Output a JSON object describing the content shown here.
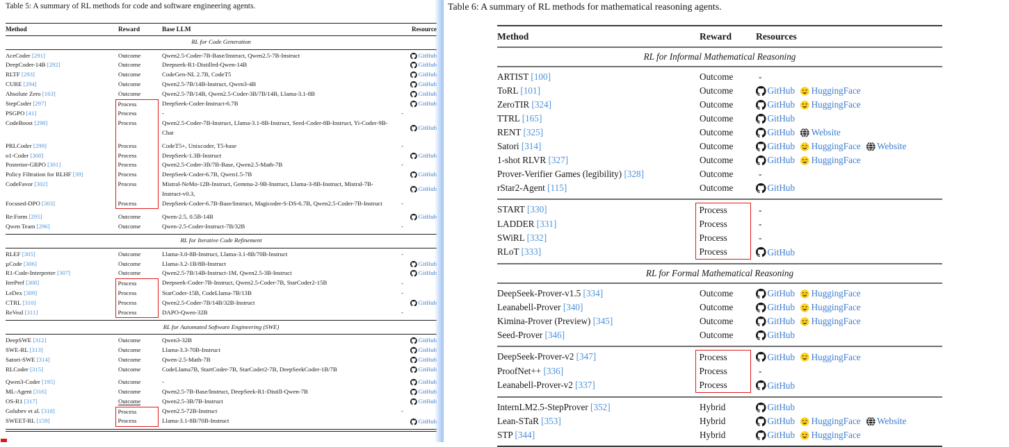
{
  "resource_labels": {
    "github": "GitHub",
    "hf": "HuggingFace",
    "web": "Website",
    "none": "-"
  },
  "colors": {
    "accent_red": "#dc1a1a",
    "link_blue": "#3c7cd0",
    "citation_blue": "#4b92d8",
    "separator_blue": "#9fc3ef"
  },
  "table5": {
    "caption": "Table 5: A summary of RL methods for code and software engineering agents.",
    "columns": [
      "Method",
      "Reward",
      "Base LLM",
      "Resource"
    ],
    "sections": [
      {
        "title": "RL for Code Generation",
        "blocks": [
          [
            {
              "m": "AceCoder",
              "c": "291",
              "r": "Outcome",
              "b": "Qwen2.5-Coder-7B-Base/Instruct, Qwen2.5-7B-Instruct",
              "res": [
                "github"
              ]
            },
            {
              "m": "DeepCoder-14B",
              "c": "292",
              "r": "Outcome",
              "b": "Deepseek-R1-Distilled-Qwen-14B",
              "res": [
                "github"
              ]
            },
            {
              "m": "RLTF",
              "c": "293",
              "r": "Outcome",
              "b": "CodeGen-NL 2.7B, CodeT5",
              "res": [
                "github"
              ]
            },
            {
              "m": "CURE",
              "c": "294",
              "r": "Outcome",
              "b": "Qwen2.5-7B/14B-Instruct, Qwen3-4B",
              "res": [
                "github"
              ]
            },
            {
              "m": "Absolute Zero",
              "c": "163",
              "r": "Outcome",
              "b": "Qwen2.5-7B/14B, Qwen2.5-Coder-3B/7B/14B, Llama-3.1-8B",
              "res": [
                "github"
              ]
            },
            {
              "m": "StepCoder",
              "c": "297",
              "r": "Process",
              "b": "DeepSeek-Coder-Instruct-6.7B",
              "res": [
                "github"
              ],
              "box": "s"
            },
            {
              "m": "PSGPO",
              "c": "41",
              "r": "Process",
              "b": "-",
              "res": [
                "-"
              ],
              "box": "m"
            },
            {
              "m": "CodeBoost",
              "c": "298",
              "r": "Process",
              "b": "Qwen2.5-Coder-7B-Instruct, Llama-3.1-8B-Instruct, Seed-Coder-8B-Instruct, Yi-Coder-9B-Chat",
              "res": [
                "github"
              ],
              "box": "m"
            },
            {
              "m": "PRLCoder",
              "c": "299",
              "r": "Process",
              "b": "CodeT5+, Unixcoder, T5-base",
              "res": [
                "-"
              ],
              "box": "m",
              "gap": 1
            },
            {
              "m": "o1-Coder",
              "c": "300",
              "r": "Process",
              "b": "DeepSeek-1.3B-Instruct",
              "res": [
                "github"
              ],
              "box": "m"
            },
            {
              "m": "Posterior-GRPO",
              "c": "301",
              "r": "Process",
              "b": "Qwen2.5-Coder-3B/7B-Base, Qwen2.5-Math-7B",
              "res": [
                "-"
              ],
              "box": "m"
            },
            {
              "m": "Policy Filtration for RLHF",
              "c": "39",
              "r": "Process",
              "b": "DeepSeek-Coder-6.7B, Qwen1.5-7B",
              "res": [
                "github"
              ],
              "box": "m"
            },
            {
              "m": "CodeFavor",
              "c": "302",
              "r": "Process",
              "b": "Mistral-NeMo-12B-Instruct, Gemma-2-9B-Instruct, Llama-3-8B-Instruct, Mistral-7B-Instruct-v0.3,",
              "res": [
                "github"
              ],
              "box": "m"
            },
            {
              "m": "Focused-DPO",
              "c": "303",
              "r": "Process",
              "b": "DeepSeek-Coder-6.7B-Base/Instruct, Magicoder-S-DS-6.7B, Qwen2.5-Coder-7B-Instruct",
              "res": [
                "-"
              ],
              "box": "e"
            },
            {
              "m": "Re:Form",
              "c": "295",
              "r": "Outcome",
              "b": "Qwen-2.5, 0.5B-14B",
              "res": [
                "github"
              ],
              "gap": 1
            },
            {
              "m": "Qwen Team",
              "c": "296",
              "r": "Outcome",
              "b": "Qwen-2.5-Coder-Instruct-7B/32B",
              "res": [
                "-"
              ]
            }
          ]
        ]
      },
      {
        "title": "RL for Iterative Code Refinement",
        "blocks": [
          [
            {
              "m": "RLEF",
              "c": "305",
              "r": "Outcome",
              "b": "Llama-3.0-8B-Instruct, Llama-3.1-8B/70B-Instruct",
              "res": [
                "-"
              ]
            },
            {
              "m": "µCode",
              "c": "306",
              "r": "Outcome",
              "b": "Llama-3.2-1B/8B-Instruct",
              "res": [
                "github"
              ]
            },
            {
              "m": "R1-Code-Interpreter",
              "c": "307",
              "r": "Outcome",
              "b": "Qwen2.5-7B/14B-Instruct-1M, Qwen2.5-3B-Instruct",
              "res": [
                "github"
              ]
            },
            {
              "m": "IterPref",
              "c": "308",
              "r": "Process",
              "b": "Deepseek-Coder-7B-Instruct, Qwen2.5-Coder-7B, StarCoder2-15B",
              "res": [
                "-"
              ],
              "box": "s"
            },
            {
              "m": "LeDex",
              "c": "309",
              "r": "Process",
              "b": "StarCoder-15B, CodeLlama-7B/13B",
              "res": [
                "-"
              ],
              "box": "m"
            },
            {
              "m": "CTRL",
              "c": "310",
              "r": "Process",
              "b": "Qwen2.5-Coder-7B/14B/32B-Instruct",
              "res": [
                "github"
              ],
              "box": "m"
            },
            {
              "m": "ReVeal",
              "c": "311",
              "r": "Process",
              "b": "DAPO-Qwen-32B",
              "res": [
                "-"
              ],
              "box": "e"
            }
          ]
        ]
      },
      {
        "title": "RL for Automated Software Engineering (SWE)",
        "blocks": [
          [
            {
              "m": "DeepSWE",
              "c": "312",
              "r": "Outcome",
              "b": "Qwen3-32B",
              "res": [
                "github"
              ]
            },
            {
              "m": "SWE-RL",
              "c": "313",
              "r": "Outcome",
              "b": "Llama-3.3-70B-Instruct",
              "res": [
                "github"
              ]
            },
            {
              "m": "Satori-SWE",
              "c": "314",
              "r": "Outcome",
              "b": "Qwen-2.5-Math-7B",
              "res": [
                "github"
              ]
            },
            {
              "m": "RLCoder",
              "c": "315",
              "r": "Outcome",
              "b": "CodeLlama7B, StartCoder-7B, StarCoder2-7B, DeepSeekCoder-1B/7B",
              "res": [
                "github"
              ]
            },
            {
              "m": "Qwen3-Coder",
              "c": "195",
              "r": "Outcome",
              "b": "-",
              "res": [
                "github"
              ],
              "gap": 1
            },
            {
              "m": "ML-Agent",
              "c": "316",
              "r": "Outcome",
              "b": "Qwen2.5-7B-Base/Instruct, DeepSeek-R1-Distill-Qwen-7B",
              "res": [
                "github"
              ]
            },
            {
              "m": "OS-R1",
              "c": "317",
              "r": "Outcome",
              "b": "Qwen2.5-3B/7B-Instruct",
              "res": [
                "github"
              ],
              "u": 1
            },
            {
              "m": "Golubev et al.",
              "c": "318",
              "r": "Process",
              "b": "Qwen2.5-72B-Instruct",
              "res": [
                "-"
              ],
              "box": "s"
            },
            {
              "m": "SWEET-RL",
              "c": "159",
              "r": "Process",
              "b": "Llama-3.1-8B/70B-Instruct",
              "res": [
                "github"
              ],
              "box": "e"
            }
          ]
        ]
      }
    ]
  },
  "table6": {
    "caption": "Table 6: A summary of RL methods for mathematical reasoning agents.",
    "columns": [
      "Method",
      "Reward",
      "Resources"
    ],
    "sections": [
      {
        "title": "RL for Informal Mathematical Reasoning",
        "blocks": [
          [
            {
              "m": "ARTIST",
              "c": "100",
              "r": "Outcome",
              "res": [
                "-"
              ]
            },
            {
              "m": "ToRL",
              "c": "101",
              "r": "Outcome",
              "res": [
                "github",
                "hf"
              ]
            },
            {
              "m": "ZeroTIR",
              "c": "324",
              "r": "Outcome",
              "res": [
                "github",
                "hf"
              ]
            },
            {
              "m": "TTRL",
              "c": "165",
              "r": "Outcome",
              "res": [
                "github"
              ]
            },
            {
              "m": "RENT",
              "c": "325",
              "r": "Outcome",
              "res": [
                "github",
                "web"
              ]
            },
            {
              "m": "Satori",
              "c": "314",
              "r": "Outcome",
              "res": [
                "github",
                "hf",
                "web"
              ]
            },
            {
              "m": "1-shot RLVR",
              "c": "327",
              "r": "Outcome",
              "res": [
                "github",
                "hf"
              ]
            },
            {
              "m": "Prover-Verifier Games (legibility)",
              "c": "328",
              "r": "Outcome",
              "res": [
                "-"
              ]
            },
            {
              "m": "rStar2-Agent",
              "c": "115",
              "r": "Outcome",
              "res": [
                "github"
              ]
            }
          ],
          [
            {
              "m": "START",
              "c": "330",
              "r": "Process",
              "res": [
                "-"
              ],
              "box": "s"
            },
            {
              "m": "LADDER",
              "c": "331",
              "r": "Process",
              "res": [
                "-"
              ],
              "box": "m"
            },
            {
              "m": "SWiRL",
              "c": "332",
              "r": "Process",
              "res": [
                "-"
              ],
              "box": "m"
            },
            {
              "m": "RLoT",
              "c": "333",
              "r": "Process",
              "res": [
                "github"
              ],
              "box": "e"
            }
          ]
        ]
      },
      {
        "title": "RL for Formal Mathematical Reasoning",
        "blocks": [
          [
            {
              "m": "DeepSeek-Prover-v1.5",
              "c": "334",
              "r": "Outcome",
              "res": [
                "github",
                "hf"
              ]
            },
            {
              "m": "Leanabell-Prover",
              "c": "340",
              "r": "Outcome",
              "res": [
                "github",
                "hf"
              ]
            },
            {
              "m": "Kimina-Prover (Preview)",
              "c": "345",
              "r": "Outcome",
              "res": [
                "github",
                "hf"
              ]
            },
            {
              "m": "Seed-Prover",
              "c": "346",
              "r": "Outcome",
              "res": [
                "github"
              ]
            }
          ],
          [
            {
              "m": "DeepSeek-Prover-v2",
              "c": "347",
              "r": "Process",
              "res": [
                "github",
                "hf"
              ],
              "box": "s"
            },
            {
              "m": "ProofNet++",
              "c": "336",
              "r": "Process",
              "res": [
                "-"
              ],
              "box": "m"
            },
            {
              "m": "Leanabell-Prover-v2",
              "c": "337",
              "r": "Process",
              "res": [
                "github"
              ],
              "box": "e"
            }
          ],
          [
            {
              "m": "InternLM2.5-StepProver",
              "c": "352",
              "r": "Hybrid",
              "res": [
                "github"
              ]
            },
            {
              "m": "Lean-STaR",
              "c": "353",
              "r": "Hybrid",
              "res": [
                "github",
                "hf",
                "web"
              ]
            },
            {
              "m": "STP",
              "c": "344",
              "r": "Hybrid",
              "res": [
                "github",
                "hf"
              ]
            }
          ]
        ]
      }
    ]
  }
}
